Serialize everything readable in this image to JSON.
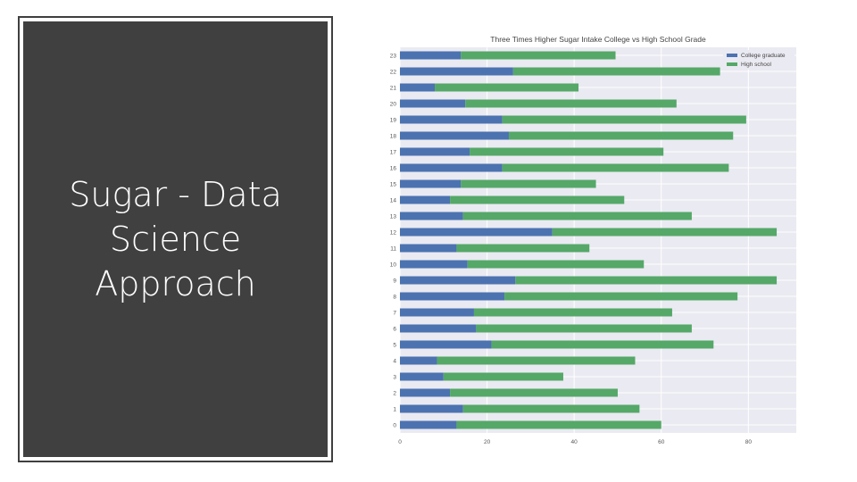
{
  "slide": {
    "title": "Sugar - Data Science Approach"
  },
  "colors": {
    "panel_bg": "#404040",
    "plot_bg": "#eaeaf2",
    "college": "#4c72b0",
    "high_school": "#55a868"
  },
  "chart_data": {
    "type": "bar",
    "orientation": "horizontal",
    "stacked": true,
    "title": "Three Times Higher Sugar Intake College vs High School Grade",
    "categories": [
      "0",
      "1",
      "2",
      "3",
      "4",
      "5",
      "6",
      "7",
      "8",
      "9",
      "10",
      "11",
      "12",
      "13",
      "14",
      "15",
      "16",
      "17",
      "18",
      "19",
      "20",
      "21",
      "22",
      "23"
    ],
    "series": [
      {
        "name": "College graduate",
        "color": "#4c72b0",
        "values": [
          13,
          14.5,
          11.5,
          10,
          8.5,
          21,
          17.5,
          17,
          24,
          26.5,
          15.5,
          13,
          35,
          14.5,
          11.5,
          14,
          23.5,
          16,
          25,
          23.5,
          15,
          8,
          26,
          14
        ]
      },
      {
        "name": "High school",
        "color": "#55a868",
        "values": [
          47,
          40.5,
          38.5,
          27.5,
          45.5,
          51,
          49.5,
          45.5,
          53.5,
          60,
          40.5,
          30.5,
          51.5,
          52.5,
          40,
          31,
          52,
          44.5,
          51.5,
          56,
          48.5,
          33,
          47.5,
          35.5
        ]
      }
    ],
    "xlim": [
      0,
      91
    ],
    "xticks": [
      0,
      20,
      40,
      60,
      80
    ],
    "grid": true,
    "legend": "top-right",
    "xlabel": "",
    "ylabel": ""
  }
}
